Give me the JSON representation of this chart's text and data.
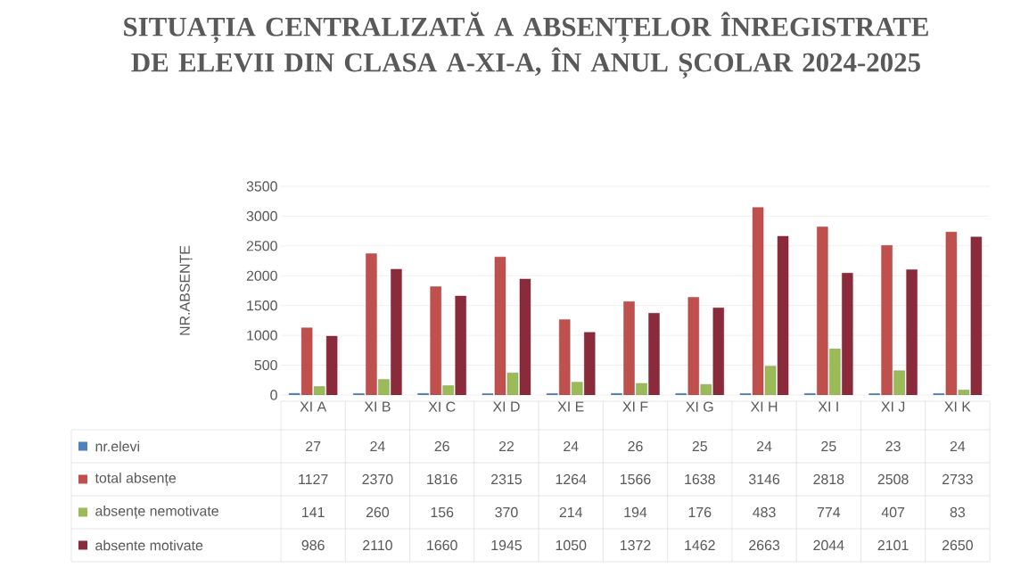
{
  "chart_data": {
    "type": "bar",
    "title": "SITUAȚIA CENTRALIZATĂ A ABSENȚELOR ÎNREGISTRATE DE ELEVII DIN CLASA A-XI-A, ÎN ANUL ȘCOLAR 2024-2025",
    "ylabel": "NR.ABSENȚE",
    "categories": [
      "XI A",
      "XI B",
      "XI C",
      "XI D",
      "XI E",
      "XI F",
      "XI G",
      "XI H",
      "XI I",
      "XI J",
      "XI K"
    ],
    "series": [
      {
        "name": "nr.elevi",
        "color": "#4f81bd",
        "values": [
          27,
          24,
          26,
          22,
          24,
          26,
          25,
          24,
          25,
          23,
          24
        ]
      },
      {
        "name": "total absențe",
        "color": "#c0504d",
        "values": [
          1127,
          2370,
          1816,
          2315,
          1264,
          1566,
          1638,
          3146,
          2818,
          2508,
          2733
        ]
      },
      {
        "name": "absențe nemotivate",
        "color": "#9bbb59",
        "values": [
          141,
          260,
          156,
          370,
          214,
          194,
          176,
          483,
          774,
          407,
          83
        ]
      },
      {
        "name": "absente motivate",
        "color": "#8b2a3a",
        "values": [
          986,
          2110,
          1660,
          1945,
          1050,
          1372,
          1462,
          2663,
          2044,
          2101,
          2650
        ]
      }
    ],
    "ylim": [
      0,
      3500
    ],
    "yticks": [
      0,
      500,
      1000,
      1500,
      2000,
      2500,
      3000,
      3500
    ],
    "grid": "y",
    "legend": "bottom",
    "data_labels": true
  }
}
